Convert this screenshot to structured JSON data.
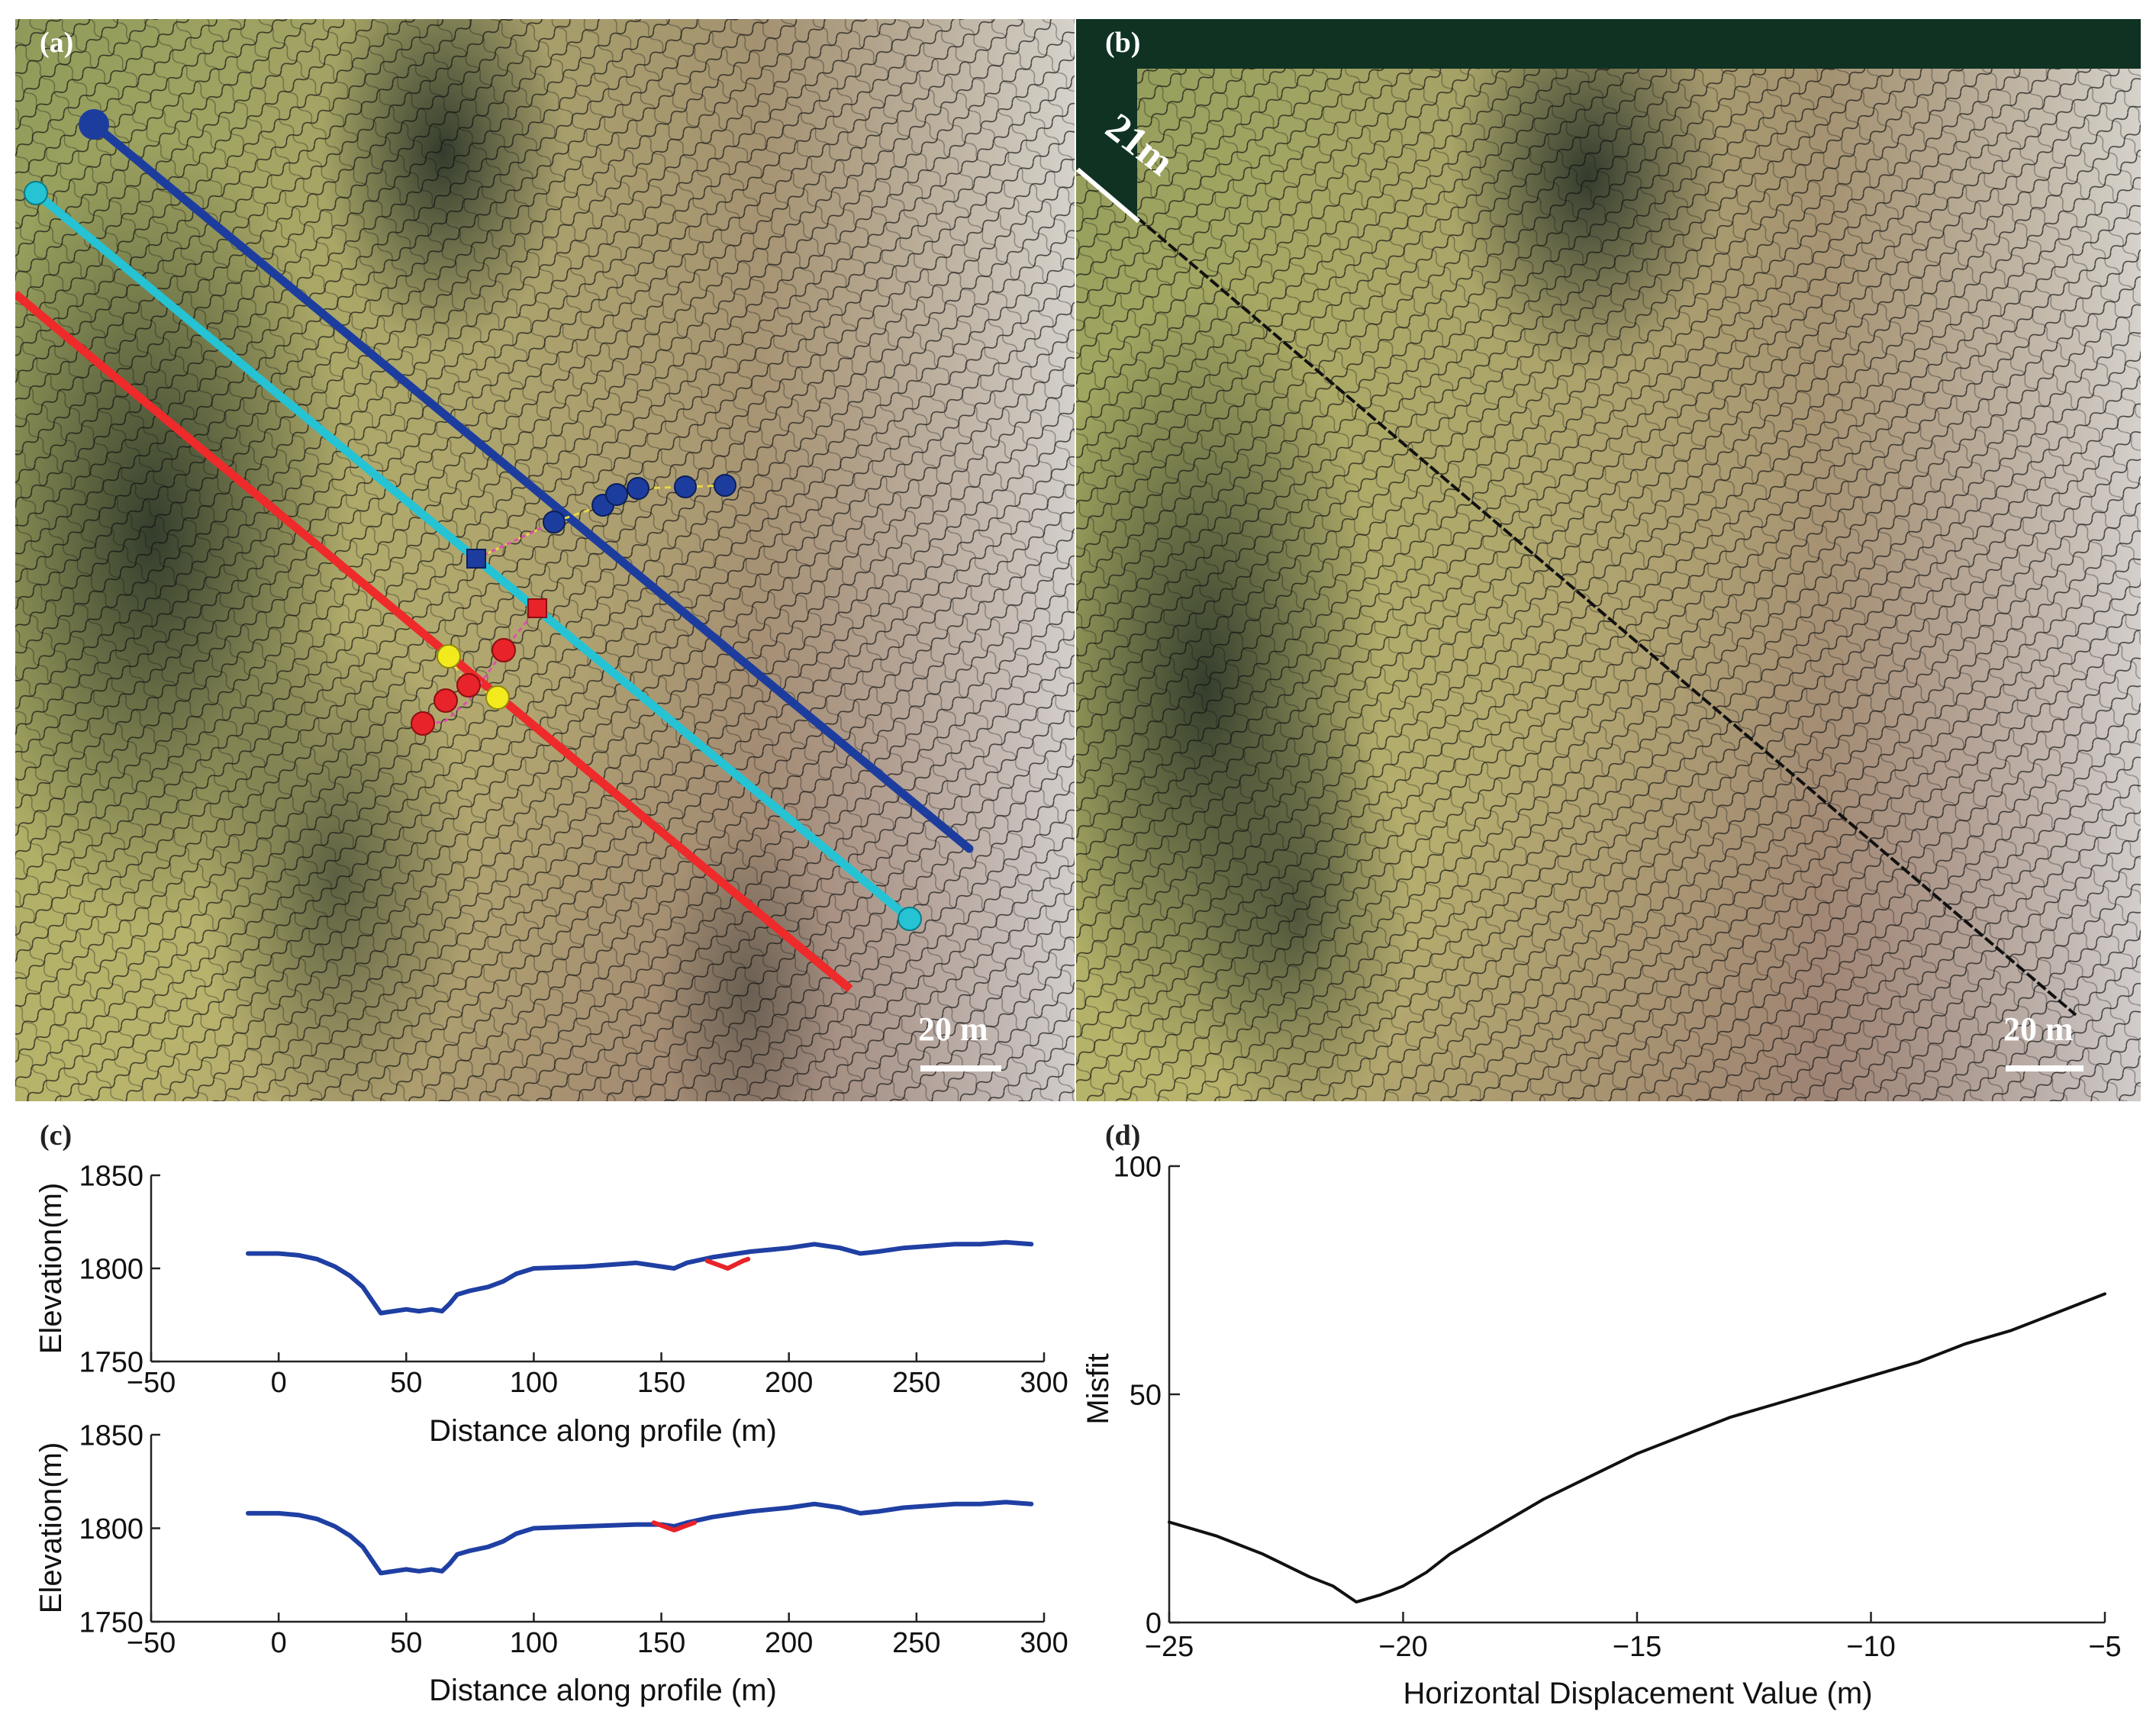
{
  "panels": {
    "a": {
      "label": "(a)",
      "scalebar": "20 m"
    },
    "b": {
      "label": "(b)",
      "offset_label": "21m",
      "scalebar": "20 m"
    }
  },
  "chart_data": [
    {
      "panel_label": "(c)",
      "type": "line",
      "xlabel": "Distance along profile (m)",
      "ylabel": "Elevation(m)",
      "xlim": [
        -50,
        300
      ],
      "ylim": [
        1750,
        1850
      ],
      "xticks": [
        "-50",
        "0",
        "50",
        "100",
        "150",
        "200",
        "250",
        "300"
      ],
      "yticks": [
        "1750",
        "1800",
        "1850"
      ],
      "series": [
        {
          "color": "#1f3fa3",
          "x": [
            -12,
            0,
            8,
            15,
            22,
            28,
            33,
            37,
            40,
            45,
            50,
            55,
            60,
            64,
            67,
            70,
            75,
            82,
            88,
            93,
            100,
            120,
            140,
            150,
            155,
            160,
            170,
            185,
            200,
            210,
            220,
            228,
            235,
            245,
            255,
            265,
            275,
            285,
            295
          ],
          "y": [
            1808,
            1808,
            1807,
            1805,
            1801,
            1796,
            1790,
            1782,
            1776,
            1777,
            1778,
            1777,
            1778,
            1777,
            1781,
            1786,
            1788,
            1790,
            1793,
            1797,
            1800,
            1801,
            1803,
            1801,
            1800,
            1803,
            1806,
            1809,
            1811,
            1813,
            1811,
            1808,
            1809,
            1811,
            1812,
            1813,
            1813,
            1814,
            1813
          ]
        },
        {
          "color": "#e8232a",
          "x": [
            168,
            172,
            176,
            179,
            182,
            184
          ],
          "y": [
            1804,
            1802,
            1800,
            1802,
            1804,
            1805
          ]
        }
      ]
    },
    {
      "type": "line",
      "xlabel": "Distance along profile (m)",
      "ylabel": "Elevation(m)",
      "xlim": [
        -50,
        300
      ],
      "ylim": [
        1750,
        1850
      ],
      "xticks": [
        "-50",
        "0",
        "50",
        "100",
        "150",
        "200",
        "250",
        "300"
      ],
      "yticks": [
        "1750",
        "1800",
        "1850"
      ],
      "series": [
        {
          "color": "#1f3fa3",
          "x": [
            -12,
            0,
            8,
            15,
            22,
            28,
            33,
            37,
            40,
            45,
            50,
            55,
            60,
            64,
            67,
            70,
            75,
            82,
            88,
            93,
            100,
            120,
            140,
            150,
            155,
            160,
            170,
            185,
            200,
            210,
            220,
            228,
            235,
            245,
            255,
            265,
            275,
            285,
            295
          ],
          "y": [
            1808,
            1808,
            1807,
            1805,
            1801,
            1796,
            1790,
            1782,
            1776,
            1777,
            1778,
            1777,
            1778,
            1777,
            1781,
            1786,
            1788,
            1790,
            1793,
            1797,
            1800,
            1801,
            1802,
            1802,
            1801,
            1803,
            1806,
            1809,
            1811,
            1813,
            1811,
            1808,
            1809,
            1811,
            1812,
            1813,
            1813,
            1814,
            1813
          ]
        },
        {
          "color": "#e8232a",
          "x": [
            147,
            151,
            155,
            159,
            163
          ],
          "y": [
            1803,
            1801,
            1799,
            1801,
            1803
          ]
        }
      ]
    },
    {
      "panel_label": "(d)",
      "type": "line",
      "xlabel": "Horizontal Displacement Value (m)",
      "ylabel": "Misfit",
      "xlim": [
        -25,
        -5
      ],
      "ylim": [
        0,
        100
      ],
      "xticks": [
        "-25",
        "-20",
        "-15",
        "-10",
        "-5"
      ],
      "yticks": [
        "0",
        "50",
        "100"
      ],
      "series": [
        {
          "color": "#111111",
          "x": [
            -25,
            -24,
            -23,
            -22,
            -21.5,
            -21,
            -20.5,
            -20,
            -19.5,
            -19,
            -18,
            -17,
            -16,
            -15,
            -14,
            -13,
            -12,
            -11,
            -10,
            -9,
            -8,
            -7,
            -6,
            -5
          ],
          "y": [
            22,
            19,
            15,
            10,
            8,
            4.5,
            6,
            8,
            11,
            15,
            21,
            27,
            32,
            37,
            41,
            45,
            48,
            51,
            54,
            57,
            61,
            64,
            68,
            72
          ]
        }
      ]
    }
  ]
}
